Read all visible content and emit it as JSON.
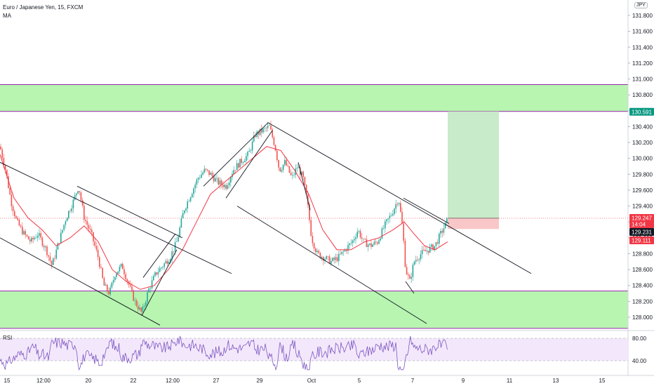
{
  "header": {
    "symbol": "Euro / Japanese Yen, 15, FXCM",
    "indicator": "MA",
    "currency": "JPY"
  },
  "rsi": {
    "label": "RSI",
    "levels": [
      "80.00",
      "40.00"
    ]
  },
  "colors": {
    "candle_up": "#26a69a",
    "candle_down": "#ef5350",
    "ma": "#f23645",
    "zone_fill": "#b7f5b0",
    "zone_border": "#9c27b0",
    "target_fill": "#c8ebc9",
    "stop_fill": "#f9c7c7",
    "rsi_line": "#7e57c2",
    "rsi_band": "#f3e8fb",
    "trendline": "#131722"
  },
  "chart_data": {
    "type": "candlestick",
    "symbol": "EUR/JPY",
    "interval": "15",
    "x_ticks": [
      "15",
      "12:00",
      "20",
      "22",
      "12:00",
      "27",
      "29",
      "Oct",
      "5",
      "7",
      "9",
      "11",
      "13",
      "15"
    ],
    "y_ticks": [
      "131.800",
      "131.600",
      "131.400",
      "131.200",
      "131.000",
      "130.800",
      "130.600",
      "130.400",
      "130.200",
      "130.000",
      "129.800",
      "129.600",
      "129.400",
      "129.200",
      "129.000",
      "128.800",
      "128.600",
      "128.400",
      "128.200",
      "128.000"
    ],
    "ylim": [
      127.81,
      131.98
    ],
    "price_labels": [
      {
        "text": "130.591",
        "value": 130.591,
        "color": "#089981"
      },
      {
        "text": "129.247",
        "sub": "14:04",
        "value": 129.247,
        "color": "#f23645"
      },
      {
        "text": "129.231",
        "value": 129.231,
        "color": "#131722"
      },
      {
        "text": "129.111",
        "value": 129.111,
        "color": "#f23645"
      }
    ],
    "zones": [
      {
        "from": 130.591,
        "to": 130.93
      },
      {
        "from": 127.86,
        "to": 128.33
      }
    ],
    "position": {
      "type": "long",
      "entry": 129.247,
      "target": 130.591,
      "stop": 129.111
    },
    "price_path": [
      [
        0,
        130.15
      ],
      [
        8,
        129.85
      ],
      [
        16,
        129.45
      ],
      [
        24,
        129.2
      ],
      [
        34,
        129.05
      ],
      [
        44,
        128.95
      ],
      [
        54,
        129.05
      ],
      [
        66,
        128.85
      ],
      [
        74,
        128.65
      ],
      [
        84,
        128.95
      ],
      [
        94,
        129.25
      ],
      [
        104,
        129.45
      ],
      [
        112,
        129.65
      ],
      [
        120,
        129.25
      ],
      [
        130,
        129.05
      ],
      [
        140,
        128.75
      ],
      [
        148,
        128.4
      ],
      [
        156,
        128.3
      ],
      [
        164,
        128.55
      ],
      [
        174,
        128.65
      ],
      [
        184,
        128.4
      ],
      [
        192,
        128.2
      ],
      [
        202,
        128.05
      ],
      [
        212,
        128.35
      ],
      [
        222,
        128.55
      ],
      [
        232,
        128.65
      ],
      [
        242,
        128.75
      ],
      [
        252,
        128.95
      ],
      [
        262,
        129.35
      ],
      [
        272,
        129.55
      ],
      [
        282,
        129.75
      ],
      [
        292,
        129.85
      ],
      [
        300,
        129.8
      ],
      [
        310,
        129.7
      ],
      [
        322,
        129.65
      ],
      [
        332,
        129.85
      ],
      [
        342,
        129.95
      ],
      [
        354,
        130.05
      ],
      [
        364,
        130.3
      ],
      [
        374,
        130.35
      ],
      [
        384,
        130.4
      ],
      [
        392,
        130.15
      ],
      [
        398,
        129.85
      ],
      [
        406,
        129.95
      ],
      [
        416,
        129.75
      ],
      [
        424,
        129.9
      ],
      [
        432,
        129.75
      ],
      [
        438,
        129.45
      ],
      [
        444,
        129.0
      ],
      [
        452,
        128.8
      ],
      [
        462,
        128.75
      ],
      [
        472,
        128.7
      ],
      [
        482,
        128.75
      ],
      [
        492,
        128.85
      ],
      [
        502,
        128.95
      ],
      [
        510,
        129.1
      ],
      [
        518,
        128.95
      ],
      [
        528,
        128.9
      ],
      [
        538,
        128.95
      ],
      [
        548,
        129.15
      ],
      [
        558,
        129.3
      ],
      [
        568,
        129.5
      ],
      [
        574,
        129.1
      ],
      [
        578,
        128.6
      ],
      [
        584,
        128.45
      ],
      [
        590,
        128.7
      ],
      [
        600,
        128.8
      ],
      [
        610,
        128.85
      ],
      [
        620,
        128.9
      ],
      [
        628,
        129.05
      ],
      [
        634,
        129.15
      ],
      [
        638,
        129.23
      ]
    ],
    "ma_path": [
      [
        0,
        130.05
      ],
      [
        20,
        129.5
      ],
      [
        40,
        129.25
      ],
      [
        60,
        129.1
      ],
      [
        80,
        128.9
      ],
      [
        100,
        129.0
      ],
      [
        120,
        129.15
      ],
      [
        140,
        128.95
      ],
      [
        160,
        128.6
      ],
      [
        180,
        128.45
      ],
      [
        200,
        128.35
      ],
      [
        220,
        128.4
      ],
      [
        240,
        128.6
      ],
      [
        260,
        128.85
      ],
      [
        280,
        129.2
      ],
      [
        300,
        129.55
      ],
      [
        320,
        129.7
      ],
      [
        340,
        129.85
      ],
      [
        360,
        130.0
      ],
      [
        380,
        130.15
      ],
      [
        400,
        130.1
      ],
      [
        420,
        129.85
      ],
      [
        440,
        129.55
      ],
      [
        460,
        129.1
      ],
      [
        480,
        128.85
      ],
      [
        500,
        128.85
      ],
      [
        520,
        128.95
      ],
      [
        540,
        129.0
      ],
      [
        560,
        129.1
      ],
      [
        576,
        129.2
      ],
      [
        590,
        129.05
      ],
      [
        605,
        128.9
      ],
      [
        620,
        128.85
      ],
      [
        638,
        128.95
      ]
    ],
    "trendlines": [
      [
        [
          0,
          129.95
        ],
        [
          330,
          128.55
        ]
      ],
      [
        [
          0,
          129.0
        ],
        [
          228,
          127.9
        ]
      ],
      [
        [
          110,
          129.65
        ],
        [
          260,
          129.0
        ]
      ],
      [
        [
          202,
          128.02
        ],
        [
          252,
          128.85
        ]
      ],
      [
        [
          204,
          128.5
        ],
        [
          250,
          129.05
        ]
      ],
      [
        [
          290,
          129.65
        ],
        [
          382,
          130.45
        ]
      ],
      [
        [
          322,
          129.5
        ],
        [
          388,
          130.35
        ]
      ],
      [
        [
          382,
          130.45
        ],
        [
          757,
          128.55
        ]
      ],
      [
        [
          338,
          129.4
        ],
        [
          608,
          127.92
        ]
      ],
      [
        [
          575,
          129.5
        ],
        [
          640,
          129.18
        ]
      ],
      [
        [
          425,
          129.95
        ],
        [
          442,
          129.35
        ]
      ],
      [
        [
          578,
          128.45
        ],
        [
          590,
          128.3
        ]
      ]
    ],
    "rsi_range": [
      20,
      90
    ]
  }
}
